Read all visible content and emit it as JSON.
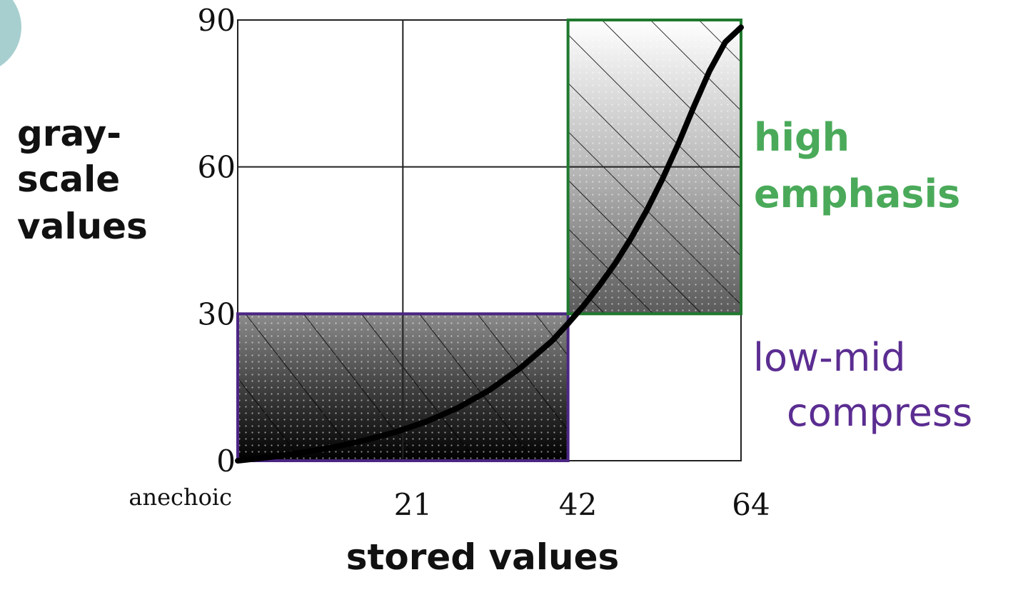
{
  "chart_data": {
    "type": "line",
    "title": "",
    "xlabel": "stored values",
    "ylabel_lines": [
      "gray-",
      "scale",
      "values"
    ],
    "x_ticks": [
      {
        "value": 21,
        "label": "21"
      },
      {
        "value": 42,
        "label": "42"
      },
      {
        "value": 64,
        "label": "64"
      }
    ],
    "x_origin_label": "anechoic",
    "y_ticks": [
      {
        "value": 0,
        "label": "0"
      },
      {
        "value": 30,
        "label": "30"
      },
      {
        "value": 60,
        "label": "60"
      },
      {
        "value": 90,
        "label": "90"
      }
    ],
    "xlim": [
      0,
      64
    ],
    "ylim": [
      0,
      90
    ],
    "grid": true,
    "series": [
      {
        "x": [
          0,
          4,
          8,
          12,
          16,
          20,
          24,
          28,
          32,
          36,
          40,
          42,
          44,
          46,
          48,
          50,
          52,
          54,
          56,
          58,
          60,
          62,
          64
        ],
        "y": [
          0,
          0.7,
          1.6,
          2.7,
          4.1,
          5.8,
          8.0,
          10.8,
          14.4,
          19.0,
          24.5,
          28.0,
          31.7,
          35.8,
          40.3,
          45.4,
          51.1,
          57.5,
          64.6,
          72.3,
          79.6,
          85.5,
          88.5
        ]
      }
    ],
    "regions": [
      {
        "label_lines": [
          "low-mid",
          "compress"
        ],
        "x_range": [
          0,
          42
        ],
        "y_range": [
          0,
          30
        ],
        "color": "#5b2d91"
      },
      {
        "label_lines": [
          "high",
          "emphasis"
        ],
        "x_range": [
          42,
          64
        ],
        "y_range": [
          30,
          90
        ],
        "color": "#4aaa5a"
      }
    ]
  },
  "colors": {
    "curve": "#000000",
    "grid": "#222222",
    "circle": "#a8cfcf"
  }
}
